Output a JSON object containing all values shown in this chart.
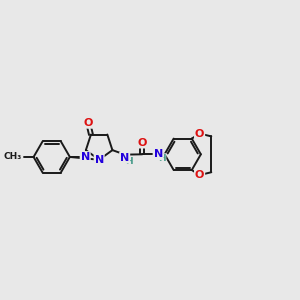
{
  "background_color": "#e8e8e8",
  "figure_size": [
    3.0,
    3.0
  ],
  "dpi": 100,
  "bond_color": "#1a1a1a",
  "bond_width": 1.4,
  "N_color": "#2200dd",
  "O_color": "#dd1111",
  "H_color": "#449988",
  "C_color": "#1a1a1a",
  "font_size_atom": 8,
  "font_size_small": 7,
  "xlim": [
    -4.5,
    5.5
  ],
  "ylim": [
    -2.0,
    2.5
  ]
}
